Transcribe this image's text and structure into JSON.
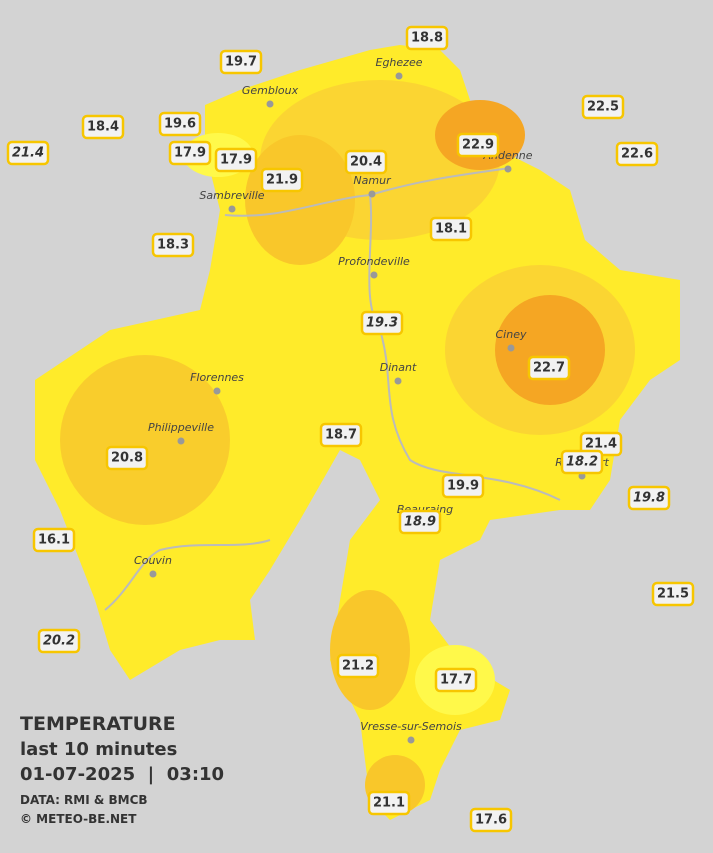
{
  "map": {
    "title": "TEMPERATURE",
    "subtitle": "last 10 minutes",
    "datetime": "01-07-2025  |  03:10",
    "source": "DATA: RMI & BMCB",
    "copyright": "© METEO-BE.NET",
    "cities": [
      "Eghezee",
      "Gembloux",
      "Andenne",
      "Namur",
      "Sambreville",
      "Profondeville",
      "Ciney",
      "Dinant",
      "Florennes",
      "Philippeville",
      "Rochefort",
      "Beauraing",
      "Couvin",
      "Vresse-sur-Semois"
    ],
    "stations": [
      {
        "value": 18.8,
        "italic": false
      },
      {
        "value": 19.7,
        "italic": false
      },
      {
        "value": 18.4,
        "italic": false
      },
      {
        "value": 19.6,
        "italic": false
      },
      {
        "value": 21.4,
        "italic": true
      },
      {
        "value": 17.9,
        "italic": false
      },
      {
        "value": 17.9,
        "italic": false
      },
      {
        "value": 20.4,
        "italic": false
      },
      {
        "value": 21.9,
        "italic": false
      },
      {
        "value": 22.9,
        "italic": false
      },
      {
        "value": 22.5,
        "italic": false
      },
      {
        "value": 22.6,
        "italic": false
      },
      {
        "value": 18.1,
        "italic": false
      },
      {
        "value": 18.3,
        "italic": false
      },
      {
        "value": 19.3,
        "italic": true
      },
      {
        "value": 22.7,
        "italic": false
      },
      {
        "value": 18.7,
        "italic": false
      },
      {
        "value": 21.4,
        "italic": false
      },
      {
        "value": 18.2,
        "italic": true
      },
      {
        "value": 20.8,
        "italic": false
      },
      {
        "value": 19.9,
        "italic": false
      },
      {
        "value": 19.8,
        "italic": true
      },
      {
        "value": 18.9,
        "italic": true
      },
      {
        "value": 16.1,
        "italic": false
      },
      {
        "value": 21.5,
        "italic": false
      },
      {
        "value": 20.2,
        "italic": true
      },
      {
        "value": 21.2,
        "italic": false
      },
      {
        "value": 17.7,
        "italic": false
      },
      {
        "value": 21.1,
        "italic": false
      },
      {
        "value": 17.6,
        "italic": false
      }
    ]
  }
}
